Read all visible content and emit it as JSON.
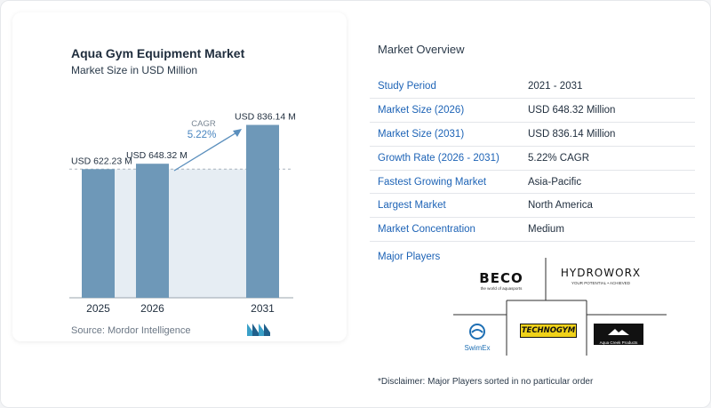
{
  "chart_data": {
    "type": "bar",
    "title": "Aqua Gym Equipment Market",
    "subtitle": "Market Size in USD Million",
    "categories": [
      "2025",
      "2026",
      "2031"
    ],
    "values": [
      622.23,
      648.32,
      836.14
    ],
    "value_labels": [
      "USD 622.23 M",
      "USD 648.32 M",
      "USD 836.14 M"
    ],
    "cagr_label": "CAGR",
    "cagr_value": "5.22%",
    "bar_color": "#6e98b8",
    "source": "Source:  Mordor Intelligence"
  },
  "overview": {
    "title": "Market Overview",
    "rows": [
      {
        "label": "Study Period",
        "value": "2021 - 2031"
      },
      {
        "label": "Market Size (2026)",
        "value": "USD 648.32 Million"
      },
      {
        "label": "Market Size (2031)",
        "value": "USD 836.14 Million"
      },
      {
        "label": "Growth Rate (2026 - 2031)",
        "value": "5.22% CAGR"
      },
      {
        "label": "Fastest Growing Market",
        "value": "Asia-Pacific"
      },
      {
        "label": "Largest Market",
        "value": "North America"
      },
      {
        "label": "Market Concentration",
        "value": "Medium"
      }
    ]
  },
  "players": {
    "title": "Major Players",
    "beco": "BECO",
    "beco_tag": "the world of aquasports",
    "hydroworx": "HYDROWORX",
    "hydroworx_tag": "YOUR POTENTIAL • ACHIEVED",
    "swimex": "SwimEx",
    "technogym": "TECHNOGYM",
    "aquacreek": "Aqua Creek Products"
  },
  "disclaimer": "*Disclaimer: Major Players sorted in no particular order"
}
